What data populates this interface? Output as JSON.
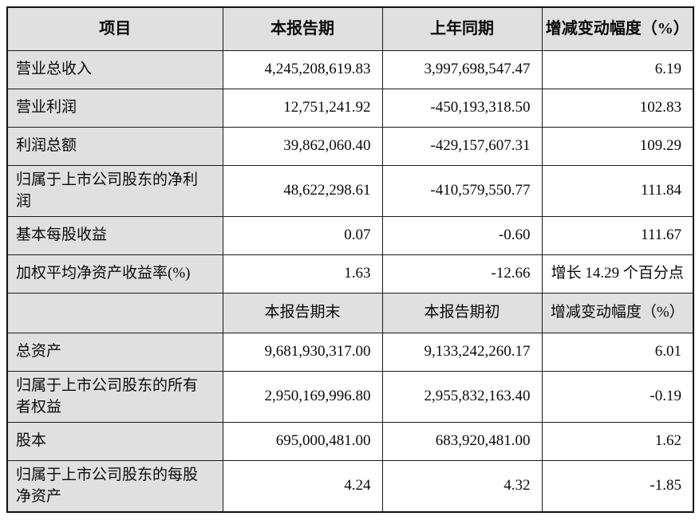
{
  "table": {
    "header": {
      "item": "项目",
      "current": "本报告期",
      "prior": "上年同期",
      "change": "增减变动幅度（%）"
    },
    "rows_top": [
      {
        "label": "营业总收入",
        "current": "4,245,208,619.83",
        "prior": "3,997,698,547.47",
        "change": "6.19"
      },
      {
        "label": "营业利润",
        "current": "12,751,241.92",
        "prior": "-450,193,318.50",
        "change": "102.83"
      },
      {
        "label": "利润总额",
        "current": "39,862,060.40",
        "prior": "-429,157,607.31",
        "change": "109.29"
      },
      {
        "label": "归属于上市公司股东的净利润",
        "current": "48,622,298.61",
        "prior": "-410,579,550.77",
        "change": "111.84"
      },
      {
        "label": "基本每股收益",
        "current": "0.07",
        "prior": "-0.60",
        "change": "111.67"
      },
      {
        "label": "加权平均净资产收益率(%)",
        "current": "1.63",
        "prior": "-12.66",
        "change": "增长 14.29 个百分点"
      }
    ],
    "subheader": {
      "item": "",
      "current": "本报告期末",
      "prior": "本报告期初",
      "change": "增减变动幅度（%）"
    },
    "rows_bottom": [
      {
        "label": "总资产",
        "current": "9,681,930,317.00",
        "prior": "9,133,242,260.17",
        "change": "6.01"
      },
      {
        "label": "归属于上市公司股东的所有者权益",
        "current": "2,950,169,996.80",
        "prior": "2,955,832,163.40",
        "change": "-0.19"
      },
      {
        "label": "股本",
        "current": "695,000,481.00",
        "prior": "683,920,481.00",
        "change": "1.62"
      },
      {
        "label": "归属于上市公司股东的每股净资产",
        "current": "4.24",
        "prior": "4.32",
        "change": "-1.85"
      }
    ]
  }
}
